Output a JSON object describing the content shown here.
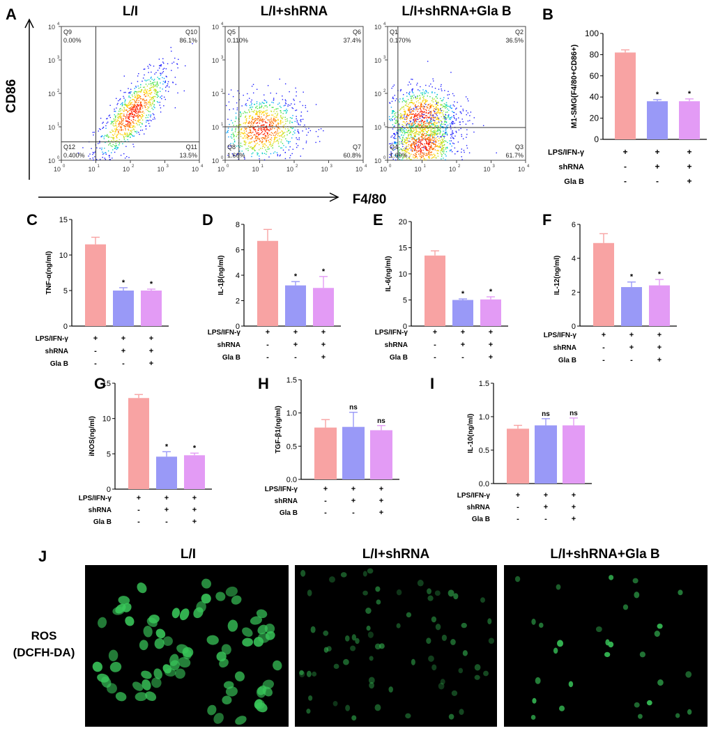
{
  "panel_letters": {
    "A": "A",
    "B": "B",
    "C": "C",
    "D": "D",
    "E": "E",
    "F": "F",
    "G": "G",
    "H": "H",
    "I": "I",
    "J": "J"
  },
  "flow": {
    "group_titles": [
      "L/I",
      "L/I+shRNA",
      "L/I+shRNA+Gla B"
    ],
    "y_axis_label": "CD86",
    "x_axis_label": "F4/80",
    "tick_labels": [
      "10",
      "10",
      "10",
      "10",
      "10"
    ],
    "tick_exponents": [
      "0",
      "1",
      "2",
      "3",
      "4"
    ],
    "plots": [
      {
        "quadrants": [
          {
            "name": "Q9",
            "value": "0.00%"
          },
          {
            "name": "Q10",
            "value": "86.1%"
          },
          {
            "name": "Q12",
            "value": "0.400%"
          },
          {
            "name": "Q11",
            "value": "13.5%"
          }
        ],
        "gate": [
          1.0,
          0.55
        ],
        "clusters": [
          [
            2.05,
            1.4,
            0.55,
            0.7,
            0.8
          ]
        ]
      },
      {
        "quadrants": [
          {
            "name": "Q5",
            "value": "0.110%"
          },
          {
            "name": "Q6",
            "value": "37.4%"
          },
          {
            "name": "Q8",
            "value": "1.66%"
          },
          {
            "name": "Q7",
            "value": "60.8%"
          }
        ],
        "gate": [
          0.4,
          1.0
        ],
        "clusters": [
          [
            1.05,
            0.95,
            0.6,
            0.5,
            0.1
          ]
        ]
      },
      {
        "quadrants": [
          {
            "name": "Q1",
            "value": "0.170%"
          },
          {
            "name": "Q2",
            "value": "36.5%"
          },
          {
            "name": "Q4",
            "value": "1.60%"
          },
          {
            "name": "Q3",
            "value": "61.7%"
          }
        ],
        "gate": [
          0.3,
          0.98
        ],
        "clusters": [
          [
            0.95,
            1.35,
            0.55,
            0.45,
            0.1
          ],
          [
            1.0,
            0.45,
            0.5,
            0.45,
            0.1
          ]
        ]
      }
    ]
  },
  "condition_rows": {
    "labels": [
      "LPS/IFN-γ",
      "shRNA",
      "Gla B"
    ],
    "values": [
      [
        "+",
        "+",
        "+"
      ],
      [
        "-",
        "+",
        "+"
      ],
      [
        "-",
        "-",
        "+"
      ]
    ]
  },
  "bar_colors": [
    "#f8a3a3",
    "#9999f7",
    "#e39bf5"
  ],
  "chart_data": [
    {
      "id": "B",
      "type": "bar",
      "ylabel": "M1-SMG(F4/80+CD86+)",
      "ylim": [
        0,
        100
      ],
      "yticks": [
        0,
        20,
        40,
        60,
        80,
        100
      ],
      "values": [
        82,
        36,
        36
      ],
      "errors": [
        2.5,
        1.5,
        2.2
      ],
      "annotations": [
        "",
        "*",
        "*"
      ]
    },
    {
      "id": "C",
      "type": "bar",
      "ylabel": "TNF-α(ng/ml)",
      "ylim": [
        0,
        15
      ],
      "yticks": [
        0,
        5,
        10,
        15
      ],
      "values": [
        11.5,
        5.0,
        5.0
      ],
      "errors": [
        1.0,
        0.4,
        0.2
      ],
      "annotations": [
        "",
        "*",
        "*"
      ]
    },
    {
      "id": "D",
      "type": "bar",
      "ylabel": "IL-1β(ng/ml)",
      "ylim": [
        0,
        8
      ],
      "yticks": [
        0,
        2,
        4,
        6,
        8
      ],
      "values": [
        6.7,
        3.2,
        3.0
      ],
      "errors": [
        0.9,
        0.3,
        0.9
      ],
      "annotations": [
        "",
        "*",
        "*"
      ]
    },
    {
      "id": "E",
      "type": "bar",
      "ylabel": "IL-6(ng/ml)",
      "ylim": [
        0,
        20
      ],
      "yticks": [
        0,
        5,
        10,
        15,
        20
      ],
      "values": [
        13.5,
        5.0,
        5.1
      ],
      "errors": [
        0.9,
        0.2,
        0.5
      ],
      "annotations": [
        "",
        "*",
        "*"
      ]
    },
    {
      "id": "F",
      "type": "bar",
      "ylabel": "IL-12(ng/ml)",
      "ylim": [
        0,
        6
      ],
      "yticks": [
        0,
        2,
        4,
        6
      ],
      "values": [
        4.9,
        2.3,
        2.4
      ],
      "errors": [
        0.55,
        0.3,
        0.35
      ],
      "annotations": [
        "",
        "*",
        "*"
      ]
    },
    {
      "id": "G",
      "type": "bar",
      "ylabel": "iNOS(ng/ml)",
      "ylim": [
        0,
        15
      ],
      "yticks": [
        0,
        5,
        10,
        15
      ],
      "values": [
        12.9,
        4.6,
        4.8
      ],
      "errors": [
        0.5,
        0.7,
        0.3
      ],
      "annotations": [
        "",
        "*",
        "*"
      ]
    },
    {
      "id": "H",
      "type": "bar",
      "ylabel": "TGF-β1(ng/ml)",
      "ylim": [
        0,
        1.5
      ],
      "yticks": [
        "0.0",
        "0.5",
        "1.0",
        "1.5"
      ],
      "values": [
        0.78,
        0.79,
        0.74
      ],
      "errors": [
        0.12,
        0.22,
        0.07
      ],
      "annotations": [
        "",
        "ns",
        "ns"
      ]
    },
    {
      "id": "I",
      "type": "bar",
      "ylabel": "IL-10(ng/ml)",
      "ylim": [
        0,
        1.5
      ],
      "yticks": [
        "0.0",
        "0.5",
        "1.0",
        "1.5"
      ],
      "values": [
        0.82,
        0.87,
        0.87
      ],
      "errors": [
        0.05,
        0.1,
        0.11
      ],
      "annotations": [
        "",
        "ns",
        "ns"
      ]
    }
  ],
  "microscopy": {
    "titles": [
      "L/I",
      "L/I+shRNA",
      "L/I+shRNA+Gla B"
    ],
    "stain_label_line1": "ROS",
    "stain_label_line2": "(DCFH-DA)",
    "cell_color": "#39c75a"
  }
}
